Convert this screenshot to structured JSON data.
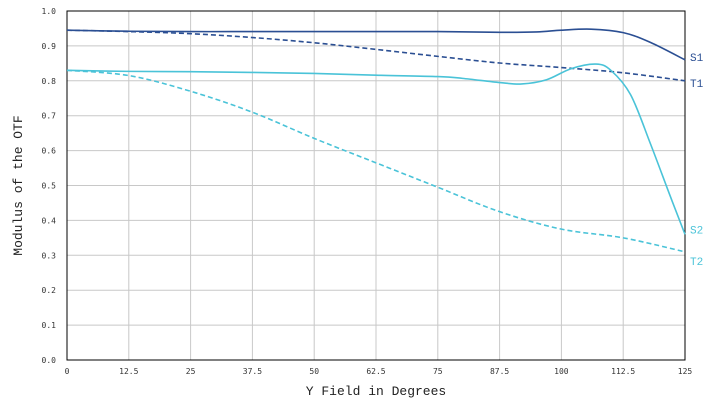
{
  "chart_data": {
    "type": "line",
    "xlabel": "Y Field in Degrees",
    "ylabel": "Modulus of the OTF",
    "xlim": [
      0,
      125
    ],
    "ylim": [
      0,
      1
    ],
    "grid": true,
    "x_ticks": [
      "0",
      "12.5",
      "25",
      "37.5",
      "50",
      "62.5",
      "75",
      "87.5",
      "100",
      "112.5",
      "125"
    ],
    "y_ticks": [
      "0.0",
      "0.1",
      "0.2",
      "0.3",
      "0.4",
      "0.5",
      "0.6",
      "0.7",
      "0.8",
      "0.9",
      "1.0"
    ],
    "series": [
      {
        "name": "S1",
        "color": "#2b4f93",
        "dash": false,
        "x": [
          0,
          12.5,
          25,
          37.5,
          50,
          62.5,
          75,
          87.5,
          95,
          100,
          106,
          112.5,
          118,
          125
        ],
        "y": [
          0.945,
          0.942,
          0.941,
          0.941,
          0.941,
          0.941,
          0.941,
          0.939,
          0.94,
          0.945,
          0.948,
          0.938,
          0.91,
          0.86
        ]
      },
      {
        "name": "T1",
        "color": "#2b4f93",
        "dash": true,
        "x": [
          0,
          12.5,
          25,
          37.5,
          50,
          62.5,
          75,
          87.5,
          100,
          112.5,
          125
        ],
        "y": [
          0.945,
          0.941,
          0.935,
          0.924,
          0.909,
          0.89,
          0.87,
          0.851,
          0.838,
          0.823,
          0.8
        ]
      },
      {
        "name": "S2",
        "color": "#4ac3d8",
        "dash": false,
        "x": [
          0,
          12.5,
          25,
          37.5,
          50,
          62.5,
          75,
          80,
          87.5,
          92,
          97,
          102,
          107,
          110,
          114,
          118,
          122,
          125
        ],
        "y": [
          0.83,
          0.827,
          0.826,
          0.824,
          0.821,
          0.816,
          0.812,
          0.807,
          0.795,
          0.791,
          0.803,
          0.835,
          0.848,
          0.83,
          0.76,
          0.62,
          0.47,
          0.36
        ]
      },
      {
        "name": "T2",
        "color": "#4ac3d8",
        "dash": true,
        "x": [
          0,
          12.5,
          25,
          37.5,
          50,
          62.5,
          75,
          87.5,
          100,
          112.5,
          125
        ],
        "y": [
          0.83,
          0.815,
          0.77,
          0.71,
          0.635,
          0.565,
          0.495,
          0.425,
          0.375,
          0.35,
          0.31
        ]
      }
    ]
  }
}
